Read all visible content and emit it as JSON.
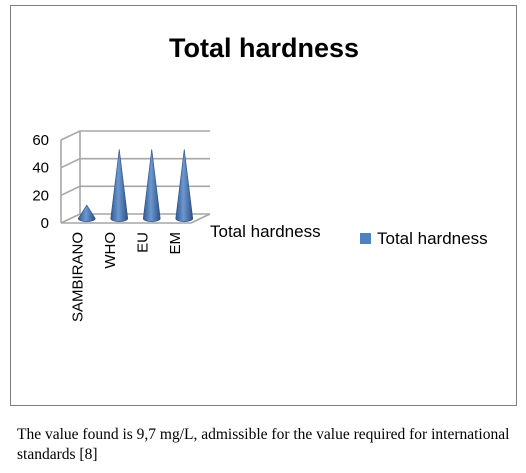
{
  "chart_data": {
    "type": "bar",
    "title": "Total hardness",
    "categories": [
      "SAMBIRANO",
      "WHO",
      "EU",
      "EM"
    ],
    "series": [
      {
        "name": "Total hardness",
        "values": [
          9.7,
          50,
          50,
          50
        ]
      }
    ],
    "y_ticks": [
      "0",
      "20",
      "40",
      "60"
    ],
    "ylim": [
      0,
      60
    ],
    "depth_axis_label": "Total hardness",
    "legend": {
      "position": "right",
      "label": "Total hardness"
    },
    "grid": true,
    "bar_shape": "cone",
    "series_color": "#4f81bd"
  },
  "caption": "The value found is 9,7 mg/L, admissible for the value required for international standards [8]"
}
